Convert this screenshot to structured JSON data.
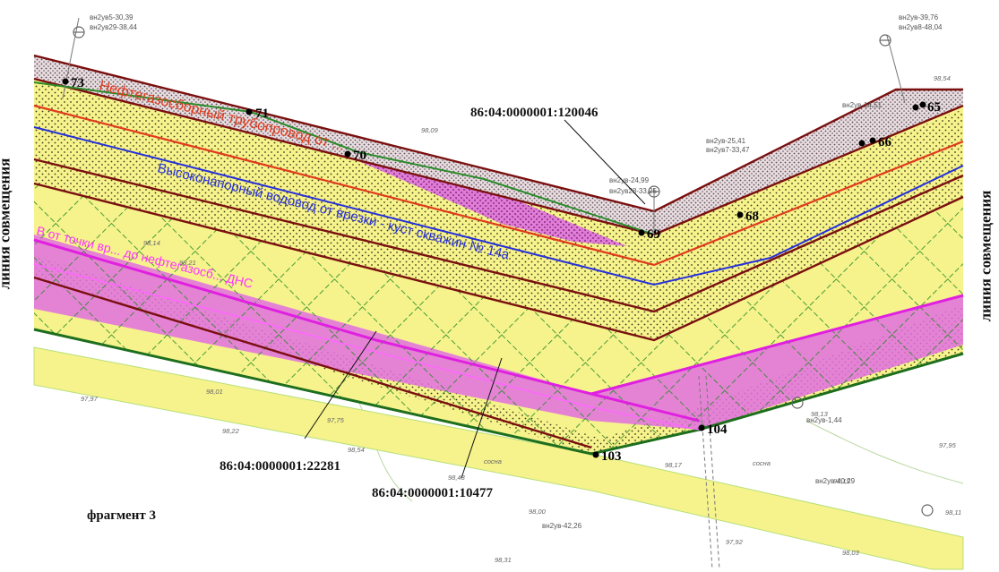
{
  "page": {
    "left_label": "линия совмещения",
    "right_label": "линия совмещения",
    "fragment_label": "фрагмент 3"
  },
  "parcels": [
    {
      "id": "p1",
      "label": "86:04:0000001:120046"
    },
    {
      "id": "p2",
      "label": "86:04:0000001:22281"
    },
    {
      "id": "p3",
      "label": "86:04:0000001:10477"
    }
  ],
  "points": [
    {
      "id": "pt73",
      "label": "73"
    },
    {
      "id": "pt71",
      "label": "71"
    },
    {
      "id": "pt70",
      "label": "70"
    },
    {
      "id": "pt69",
      "label": "69"
    },
    {
      "id": "pt68",
      "label": "68"
    },
    {
      "id": "pt66",
      "label": "66"
    },
    {
      "id": "pt65",
      "label": "65"
    },
    {
      "id": "pt104",
      "label": "104"
    },
    {
      "id": "pt103",
      "label": "103"
    }
  ],
  "pipelines": {
    "red_label": "Нефтегазосборный трубопровод от ...",
    "blue_label": "Высоконапорный водовод от врезки - куст скважин № 14а",
    "pink_label": "В от точки вр... до нефтегазосб... ДНС"
  },
  "survey": {
    "wells_top_left": [
      "вн2ув5-30,39",
      "вн2ув29-38,44"
    ],
    "wells_top_right": [
      "вн2ув-39,76",
      "вн2ув8-48,04"
    ],
    "wells_mid": [
      "вн2ув-24,99",
      "вн2ув28-33,25",
      "вн2ув-25,41",
      "вн2ув7-33,47",
      "вн2ув-14,51"
    ],
    "wells_bottom": [
      "вн2ув-1,44",
      "вн2ув-40,29",
      "вн2ув-42,26"
    ],
    "elevations": [
      "98,09",
      "98,14",
      "98,21",
      "98,01",
      "97,97",
      "97,75",
      "98,22",
      "98,54",
      "98,48",
      "98,00",
      "98,31",
      "97,92",
      "98,03",
      "98,17",
      "98,13",
      "97,95",
      "98,11",
      "98,54",
      "98,19"
    ],
    "trees": [
      "сосна",
      "сосна"
    ]
  },
  "colors": {
    "yellow_zone": "#f6f28c",
    "pink_zone": "#e070e0",
    "red_line": "#e03a1c",
    "blue_line": "#2630d8",
    "dark_red_line": "#7a0f0f",
    "green_line": "#2a8a2a",
    "magenta_line": "#e020e0"
  }
}
